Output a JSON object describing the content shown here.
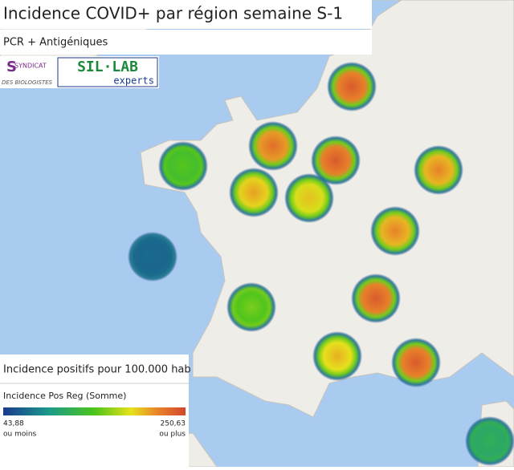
{
  "header": {
    "title": "Incidence COVID+ par région semaine S-1",
    "subtitle": "PCR + Antigéniques"
  },
  "logos": {
    "syndicat_line1": "SYNDICAT",
    "syndicat_line2": "DES BIOLOGISTES",
    "sillab": "SIL·LAB",
    "sillab_sub": "experts"
  },
  "legend": {
    "title": "Incidence positifs pour 100.000 hab",
    "field": "Incidence Pos Reg (Somme)",
    "min": {
      "value": 43.88,
      "label": "43,88"
    },
    "min_note": "ou moins",
    "max": {
      "value": 250.63,
      "label": "250,63"
    },
    "max_note": "ou plus"
  },
  "hotspots": {
    "values": [
      240,
      230,
      240,
      220,
      150,
      210,
      200,
      220,
      70,
      240,
      160,
      205,
      240,
      120
    ]
  }
}
